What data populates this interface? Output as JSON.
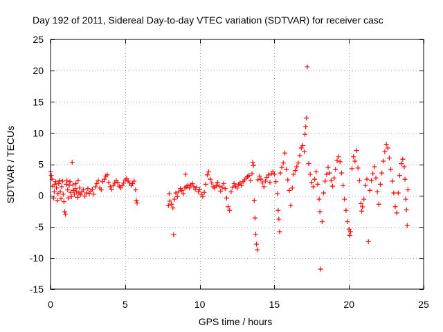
{
  "chart_data": {
    "type": "scatter",
    "title": "Day 192 of 2011, Sidereal Day-to-day VTEC variation (SDTVAR) for receiver casc",
    "xlabel": "GPS time / hours",
    "ylabel": "SDTVAR / TECUs",
    "xlim": [
      0,
      25
    ],
    "ylim": [
      -15,
      25
    ],
    "xticks": [
      0,
      5,
      10,
      15,
      20,
      25
    ],
    "yticks": [
      -15,
      -10,
      -5,
      0,
      5,
      10,
      15,
      20,
      25
    ],
    "grid": true,
    "marker": "+",
    "color": "#ff0000",
    "series": [
      {
        "name": "SDTVAR",
        "points": [
          [
            0.0,
            3.8
          ],
          [
            0.05,
            3.2
          ],
          [
            0.1,
            2.6
          ],
          [
            0.15,
            1.5
          ],
          [
            0.2,
            -0.4
          ],
          [
            0.25,
            0.6
          ],
          [
            0.3,
            1.8
          ],
          [
            0.35,
            2.2
          ],
          [
            0.4,
            1.2
          ],
          [
            0.45,
            -0.8
          ],
          [
            0.5,
            0.3
          ],
          [
            0.55,
            1.9
          ],
          [
            0.6,
            2.4
          ],
          [
            0.65,
            0.6
          ],
          [
            0.7,
            -0.5
          ],
          [
            0.75,
            1.4
          ],
          [
            0.8,
            2.3
          ],
          [
            0.85,
            0.2
          ],
          [
            0.9,
            -1.0
          ],
          [
            0.95,
            -2.6
          ],
          [
            1.0,
            -3.0
          ],
          [
            1.05,
            1.8
          ],
          [
            1.1,
            2.4
          ],
          [
            1.15,
            0.9
          ],
          [
            1.2,
            -0.4
          ],
          [
            1.25,
            1.6
          ],
          [
            1.3,
            2.2
          ],
          [
            1.35,
            0.5
          ],
          [
            1.4,
            -0.2
          ],
          [
            1.45,
            5.3
          ],
          [
            1.5,
            1.7
          ],
          [
            1.55,
            0.8
          ],
          [
            1.6,
            0.2
          ],
          [
            1.65,
            1.1
          ],
          [
            1.7,
            1.9
          ],
          [
            1.75,
            0.6
          ],
          [
            1.8,
            -0.3
          ],
          [
            1.85,
            2.4
          ],
          [
            1.9,
            0.4
          ],
          [
            1.95,
            1.2
          ],
          [
            2.0,
            0.1
          ],
          [
            2.1,
            0.6
          ],
          [
            2.2,
            0.9
          ],
          [
            2.3,
            -0.1
          ],
          [
            2.4,
            0.4
          ],
          [
            2.5,
            1.1
          ],
          [
            2.6,
            0.3
          ],
          [
            2.7,
            0.7
          ],
          [
            2.8,
            1.0
          ],
          [
            2.9,
            0.2
          ],
          [
            3.0,
            1.4
          ],
          [
            3.1,
            1.9
          ],
          [
            3.2,
            2.4
          ],
          [
            3.3,
            1.2
          ],
          [
            3.4,
            0.9
          ],
          [
            3.5,
            2.2
          ],
          [
            3.6,
            2.6
          ],
          [
            3.7,
            3.1
          ],
          [
            3.8,
            3.3
          ],
          [
            3.9,
            2.1
          ],
          [
            4.0,
            1.4
          ],
          [
            4.1,
            1.0
          ],
          [
            4.2,
            1.6
          ],
          [
            4.3,
            2.0
          ],
          [
            4.4,
            2.4
          ],
          [
            4.5,
            2.1
          ],
          [
            4.6,
            1.5
          ],
          [
            4.7,
            1.2
          ],
          [
            4.8,
            1.6
          ],
          [
            4.9,
            2.0
          ],
          [
            5.0,
            2.5
          ],
          [
            5.1,
            2.7
          ],
          [
            5.2,
            2.3
          ],
          [
            5.3,
            2.0
          ],
          [
            5.4,
            1.6
          ],
          [
            5.5,
            1.9
          ],
          [
            5.6,
            2.3
          ],
          [
            5.7,
            0.9
          ],
          [
            5.75,
            -0.8
          ],
          [
            5.8,
            -1.2
          ],
          [
            7.9,
            -1.6
          ],
          [
            7.95,
            0.3
          ],
          [
            8.0,
            -0.9
          ],
          [
            8.1,
            -1.4
          ],
          [
            8.2,
            -2.0
          ],
          [
            8.25,
            -6.3
          ],
          [
            8.3,
            -0.6
          ],
          [
            8.4,
            0.4
          ],
          [
            8.5,
            -0.2
          ],
          [
            8.6,
            0.6
          ],
          [
            8.7,
            1.1
          ],
          [
            8.8,
            0.8
          ],
          [
            8.9,
            0.3
          ],
          [
            9.0,
            1.2
          ],
          [
            9.05,
            3.4
          ],
          [
            9.1,
            1.4
          ],
          [
            9.2,
            1.6
          ],
          [
            9.3,
            1.2
          ],
          [
            9.4,
            1.7
          ],
          [
            9.5,
            1.9
          ],
          [
            9.6,
            1.4
          ],
          [
            9.7,
            1.0
          ],
          [
            9.8,
            1.3
          ],
          [
            9.9,
            0.6
          ],
          [
            10.0,
            1.0
          ],
          [
            10.1,
            0.2
          ],
          [
            10.2,
            -0.2
          ],
          [
            10.3,
            0.5
          ],
          [
            10.4,
            1.8
          ],
          [
            10.5,
            3.3
          ],
          [
            10.6,
            3.8
          ],
          [
            10.7,
            2.6
          ],
          [
            10.8,
            2.0
          ],
          [
            10.9,
            1.4
          ],
          [
            11.0,
            1.2
          ],
          [
            11.1,
            1.6
          ],
          [
            11.2,
            2.1
          ],
          [
            11.3,
            1.5
          ],
          [
            11.4,
            0.7
          ],
          [
            11.5,
            1.3
          ],
          [
            11.6,
            1.9
          ],
          [
            11.7,
            1.1
          ],
          [
            11.8,
            -0.4
          ],
          [
            11.9,
            -1.8
          ],
          [
            12.0,
            -2.4
          ],
          [
            12.1,
            0.6
          ],
          [
            12.2,
            1.3
          ],
          [
            12.3,
            1.9
          ],
          [
            12.4,
            1.5
          ],
          [
            12.5,
            1.2
          ],
          [
            12.6,
            1.8
          ],
          [
            12.7,
            2.0
          ],
          [
            12.8,
            1.6
          ],
          [
            12.9,
            2.2
          ],
          [
            13.0,
            2.5
          ],
          [
            13.1,
            2.8
          ],
          [
            13.2,
            3.0
          ],
          [
            13.3,
            3.2
          ],
          [
            13.4,
            2.4
          ],
          [
            13.5,
            3.5
          ],
          [
            13.55,
            5.3
          ],
          [
            13.6,
            4.8
          ],
          [
            13.65,
            -0.8
          ],
          [
            13.7,
            -3.6
          ],
          [
            13.75,
            -6.2
          ],
          [
            13.8,
            -7.8
          ],
          [
            13.85,
            -8.7
          ],
          [
            13.9,
            2.5
          ],
          [
            14.0,
            3.1
          ],
          [
            14.1,
            2.6
          ],
          [
            14.2,
            2.0
          ],
          [
            14.3,
            1.4
          ],
          [
            14.4,
            2.3
          ],
          [
            14.5,
            2.9
          ],
          [
            14.6,
            3.3
          ],
          [
            14.7,
            2.1
          ],
          [
            14.8,
            3.5
          ],
          [
            14.9,
            3.8
          ],
          [
            15.0,
            3.4
          ],
          [
            15.1,
            2.2
          ],
          [
            15.2,
            0.3
          ],
          [
            15.25,
            -2.4
          ],
          [
            15.3,
            -3.8
          ],
          [
            15.35,
            -5.8
          ],
          [
            15.4,
            3.6
          ],
          [
            15.5,
            4.5
          ],
          [
            15.6,
            5.2
          ],
          [
            15.7,
            6.8
          ],
          [
            15.8,
            4.2
          ],
          [
            15.9,
            2.5
          ],
          [
            16.0,
            0.8
          ],
          [
            16.1,
            -1.6
          ],
          [
            16.2,
            1.2
          ],
          [
            16.3,
            3.4
          ],
          [
            16.4,
            4.0
          ],
          [
            16.5,
            4.6
          ],
          [
            16.6,
            5.2
          ],
          [
            16.7,
            6.4
          ],
          [
            16.8,
            7.6
          ],
          [
            16.9,
            8.0
          ],
          [
            17.0,
            7.0
          ],
          [
            17.05,
            9.8
          ],
          [
            17.1,
            11.0
          ],
          [
            17.15,
            12.4
          ],
          [
            17.2,
            20.6
          ],
          [
            17.3,
            5.1
          ],
          [
            17.4,
            3.4
          ],
          [
            17.5,
            2.1
          ],
          [
            17.6,
            1.4
          ],
          [
            17.7,
            2.6
          ],
          [
            17.8,
            3.8
          ],
          [
            17.9,
            1.8
          ],
          [
            18.0,
            -0.6
          ],
          [
            18.05,
            -2.6
          ],
          [
            18.1,
            -11.8
          ],
          [
            18.2,
            -4.2
          ],
          [
            18.3,
            0.4
          ],
          [
            18.4,
            2.3
          ],
          [
            18.5,
            3.4
          ],
          [
            18.6,
            4.5
          ],
          [
            18.7,
            3.6
          ],
          [
            18.8,
            2.4
          ],
          [
            18.9,
            1.5
          ],
          [
            19.0,
            2.8
          ],
          [
            19.1,
            4.2
          ],
          [
            19.2,
            5.6
          ],
          [
            19.3,
            6.2
          ],
          [
            19.4,
            5.4
          ],
          [
            19.5,
            3.6
          ],
          [
            19.6,
            1.6
          ],
          [
            19.7,
            -0.6
          ],
          [
            19.8,
            -2.4
          ],
          [
            19.9,
            -4.2
          ],
          [
            20.0,
            -5.4
          ],
          [
            20.05,
            -6.4
          ],
          [
            20.1,
            -5.8
          ],
          [
            20.2,
            4.3
          ],
          [
            20.3,
            6.2
          ],
          [
            20.4,
            5.5
          ],
          [
            20.5,
            7.2
          ],
          [
            20.6,
            4.4
          ],
          [
            20.7,
            2.4
          ],
          [
            20.8,
            -1.3
          ],
          [
            20.85,
            -2.5
          ],
          [
            20.9,
            -1.8
          ],
          [
            21.0,
            -0.6
          ],
          [
            21.1,
            1.6
          ],
          [
            21.2,
            2.6
          ],
          [
            21.3,
            -7.4
          ],
          [
            21.4,
            0.8
          ],
          [
            21.5,
            2.4
          ],
          [
            21.6,
            3.5
          ],
          [
            21.7,
            4.6
          ],
          [
            21.8,
            2.8
          ],
          [
            21.9,
            0.6
          ],
          [
            22.0,
            -1.4
          ],
          [
            22.1,
            1.8
          ],
          [
            22.2,
            3.6
          ],
          [
            22.3,
            5.5
          ],
          [
            22.4,
            7.0
          ],
          [
            22.5,
            8.2
          ],
          [
            22.6,
            7.6
          ],
          [
            22.7,
            6.0
          ],
          [
            22.8,
            4.2
          ],
          [
            22.9,
            2.3
          ],
          [
            23.0,
            0.4
          ],
          [
            23.1,
            -1.8
          ],
          [
            23.2,
            -2.8
          ],
          [
            23.3,
            0.4
          ],
          [
            23.4,
            3.2
          ],
          [
            23.5,
            5.1
          ],
          [
            23.6,
            5.8
          ],
          [
            23.7,
            4.6
          ],
          [
            23.75,
            2.6
          ],
          [
            23.8,
            -0.6
          ],
          [
            23.85,
            -2.3
          ],
          [
            23.9,
            -4.8
          ],
          [
            23.95,
            0.9
          ]
        ]
      }
    ]
  }
}
